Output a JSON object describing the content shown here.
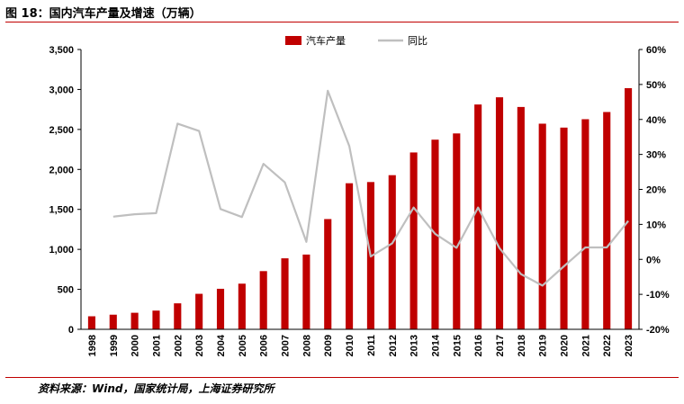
{
  "figure": {
    "title": "图 18：国内汽车产量及增速（万辆）",
    "source": "资料来源：Wind，国家统计局，上海证券研究所"
  },
  "colors": {
    "bar": "#c00000",
    "line": "#bfbfbf",
    "rule": "#c00000",
    "axis": "#000000"
  },
  "chart_data": {
    "type": "bar",
    "title": "",
    "xlabel": "",
    "ylabel": "",
    "categories": [
      "1998",
      "1999",
      "2000",
      "2001",
      "2002",
      "2003",
      "2004",
      "2005",
      "2006",
      "2007",
      "2008",
      "2009",
      "2010",
      "2011",
      "2012",
      "2013",
      "2014",
      "2015",
      "2016",
      "2017",
      "2018",
      "2019",
      "2020",
      "2021",
      "2022",
      "2023"
    ],
    "series": [
      {
        "name": "汽车产量",
        "type": "bar",
        "axis": "left",
        "values": [
          163,
          183,
          207,
          234,
          325,
          444,
          507,
          571,
          728,
          888,
          935,
          1379,
          1827,
          1842,
          1928,
          2212,
          2372,
          2450,
          2812,
          2902,
          2781,
          2572,
          2523,
          2628,
          2718,
          3016
        ]
      },
      {
        "name": "同比",
        "type": "line",
        "axis": "right",
        "values": [
          null,
          12.2,
          12.9,
          13.2,
          38.8,
          36.7,
          14.4,
          12.1,
          27.3,
          22.0,
          5.0,
          48.2,
          32.4,
          0.8,
          4.6,
          14.8,
          7.3,
          3.3,
          14.8,
          3.2,
          -4.2,
          -7.5,
          -2.0,
          3.4,
          3.4,
          11.0
        ]
      }
    ],
    "ylim_left": [
      0,
      3500
    ],
    "ylim_right": [
      -20,
      60
    ],
    "left_ticks": [
      "0",
      "500",
      "1,000",
      "1,500",
      "2,000",
      "2,500",
      "3,000",
      "3,500"
    ],
    "right_ticks": [
      "-20%",
      "-10%",
      "0%",
      "10%",
      "20%",
      "30%",
      "40%",
      "50%",
      "60%"
    ],
    "legend": [
      "汽车产量",
      "同比"
    ],
    "legend_position": "top-center",
    "grid": false
  }
}
